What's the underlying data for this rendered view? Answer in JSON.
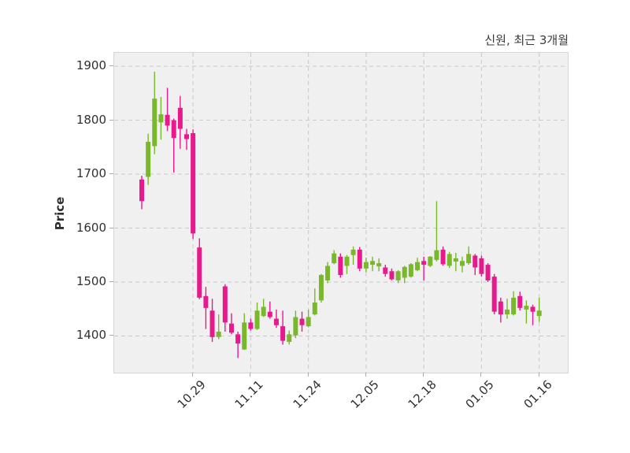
{
  "title": "신원, 최근 3개월",
  "chart_data": {
    "type": "candlestick",
    "symbol": "신원",
    "period": "최근 3개월",
    "title": "신원, 최근 3개월",
    "ylabel": "Price",
    "ylim": [
      1332,
      1925
    ],
    "grid": "dashed",
    "legend": "none",
    "up_color": "#7ab82b",
    "down_color": "#e8198c",
    "grid_color": "#c9c9c9",
    "plot_bg_color": "#f0f0f0",
    "y_ticks": [
      1400,
      1500,
      1600,
      1700,
      1800,
      1900
    ],
    "x_ticks": [
      {
        "label": "10.29",
        "index": 8
      },
      {
        "label": "11.11",
        "index": 17
      },
      {
        "label": "11.24",
        "index": 26
      },
      {
        "label": "12.05",
        "index": 35
      },
      {
        "label": "12.18",
        "index": 44
      },
      {
        "label": "01.05",
        "index": 53
      },
      {
        "label": "01.16",
        "index": 62
      }
    ],
    "columns": [
      "open",
      "high",
      "low",
      "close"
    ],
    "candles": [
      [
        1690,
        1697,
        1635,
        1650
      ],
      [
        1695,
        1775,
        1680,
        1760
      ],
      [
        1752,
        1890,
        1737,
        1840
      ],
      [
        1796,
        1843,
        1764,
        1811
      ],
      [
        1810,
        1860,
        1780,
        1790
      ],
      [
        1800,
        1803,
        1703,
        1767
      ],
      [
        1823,
        1845,
        1747,
        1784
      ],
      [
        1774,
        1784,
        1745,
        1765
      ],
      [
        1776,
        1783,
        1580,
        1590
      ],
      [
        1564,
        1581,
        1468,
        1471
      ],
      [
        1474,
        1491,
        1413,
        1452
      ],
      [
        1447,
        1469,
        1389,
        1398
      ],
      [
        1398,
        1440,
        1394,
        1408
      ],
      [
        1492,
        1496,
        1408,
        1425
      ],
      [
        1423,
        1442,
        1403,
        1406
      ],
      [
        1403,
        1408,
        1359,
        1386
      ],
      [
        1375,
        1442,
        1374,
        1425
      ],
      [
        1425,
        1432,
        1410,
        1413
      ],
      [
        1413,
        1462,
        1411,
        1447
      ],
      [
        1437,
        1469,
        1435,
        1454
      ],
      [
        1445,
        1464,
        1432,
        1435
      ],
      [
        1432,
        1449,
        1415,
        1420
      ],
      [
        1418,
        1447,
        1384,
        1391
      ],
      [
        1389,
        1410,
        1384,
        1403
      ],
      [
        1401,
        1447,
        1396,
        1435
      ],
      [
        1432,
        1445,
        1408,
        1420
      ],
      [
        1418,
        1449,
        1416,
        1435
      ],
      [
        1440,
        1488,
        1438,
        1462
      ],
      [
        1466,
        1515,
        1462,
        1513
      ],
      [
        1503,
        1537,
        1498,
        1530
      ],
      [
        1535,
        1559,
        1533,
        1553
      ],
      [
        1547,
        1553,
        1508,
        1513
      ],
      [
        1530,
        1550,
        1515,
        1547
      ],
      [
        1550,
        1566,
        1532,
        1560
      ],
      [
        1560,
        1565,
        1520,
        1525
      ],
      [
        1525,
        1545,
        1518,
        1537
      ],
      [
        1532,
        1547,
        1520,
        1539
      ],
      [
        1529,
        1544,
        1520,
        1535
      ],
      [
        1527,
        1532,
        1510,
        1515
      ],
      [
        1520,
        1525,
        1503,
        1505
      ],
      [
        1503,
        1522,
        1498,
        1520
      ],
      [
        1508,
        1530,
        1498,
        1528
      ],
      [
        1510,
        1535,
        1508,
        1533
      ],
      [
        1522,
        1545,
        1520,
        1537
      ],
      [
        1539,
        1547,
        1503,
        1532
      ],
      [
        1530,
        1548,
        1528,
        1547
      ],
      [
        1541,
        1650,
        1538,
        1559
      ],
      [
        1560,
        1566,
        1530,
        1533
      ],
      [
        1530,
        1556,
        1526,
        1552
      ],
      [
        1538,
        1554,
        1520,
        1544
      ],
      [
        1530,
        1547,
        1518,
        1539
      ],
      [
        1535,
        1566,
        1532,
        1552
      ],
      [
        1549,
        1552,
        1513,
        1527
      ],
      [
        1544,
        1549,
        1510,
        1515
      ],
      [
        1532,
        1535,
        1500,
        1503
      ],
      [
        1510,
        1515,
        1440,
        1445
      ],
      [
        1464,
        1471,
        1425,
        1440
      ],
      [
        1440,
        1469,
        1432,
        1449
      ],
      [
        1440,
        1483,
        1438,
        1471
      ],
      [
        1474,
        1482,
        1447,
        1452
      ],
      [
        1449,
        1466,
        1423,
        1456
      ],
      [
        1454,
        1458,
        1420,
        1445
      ],
      [
        1437,
        1471,
        1426,
        1447
      ]
    ]
  }
}
